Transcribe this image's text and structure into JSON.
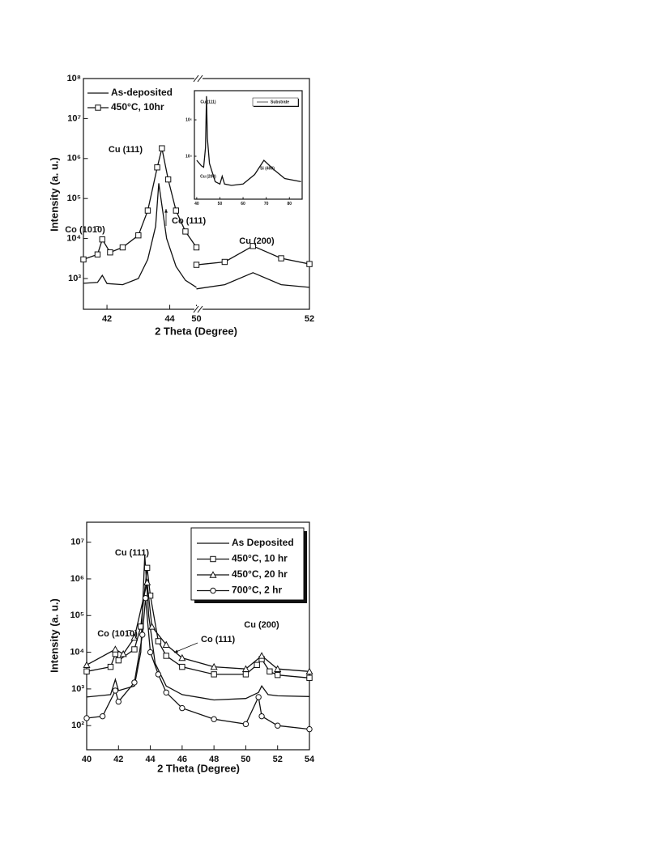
{
  "chart_data": [
    {
      "type": "line",
      "log_scale": "y",
      "legend": "upper left",
      "xlabel": "2 Theta (Degree)",
      "ylabel": "Intensity (a. u.)",
      "xlim_segments": [
        [
          41.25,
          44.85
        ],
        [
          50,
          52
        ]
      ],
      "xticks": [
        42,
        44,
        50,
        52
      ],
      "ylim": [
        170,
        100000000
      ],
      "yticks": [
        {
          "value": 1000,
          "label": "10³"
        },
        {
          "value": 10000,
          "label": "10⁴"
        },
        {
          "value": 100000,
          "label": "10⁵"
        },
        {
          "value": 1000000,
          "label": "10⁶"
        },
        {
          "value": 10000000,
          "label": "10⁷"
        },
        {
          "value": 100000000,
          "label": "10⁸"
        }
      ],
      "annotations": [
        "Cu (111)",
        "Co (101̄0)",
        "Co (111)",
        "Cu (200)"
      ],
      "series": [
        {
          "name": "As-deposited",
          "color": "#111111",
          "marker": "none",
          "x": [
            41.25,
            41.7,
            41.85,
            42.0,
            42.5,
            43.0,
            43.3,
            43.55,
            43.65,
            43.9,
            44.2,
            44.5,
            44.85,
            50,
            50.5,
            51.0,
            51.5,
            52
          ],
          "values": [
            760,
            800,
            1200,
            750,
            700,
            1000,
            3000,
            20000,
            240000,
            10000,
            2000,
            900,
            600,
            550,
            700,
            1400,
            700,
            600
          ]
        },
        {
          "name": "450°C, 10hr",
          "color": "#111111",
          "marker": "square",
          "x": [
            41.25,
            41.7,
            41.85,
            42.1,
            42.5,
            43.0,
            43.3,
            43.6,
            43.75,
            43.95,
            44.2,
            44.5,
            44.85,
            50,
            50.5,
            51.0,
            51.5,
            52
          ],
          "values": [
            3000,
            4000,
            9500,
            4500,
            6000,
            12000,
            50000,
            600000,
            1800000,
            300000,
            50000,
            15000,
            6000,
            2200,
            2600,
            6500,
            3200,
            2300
          ]
        }
      ],
      "inset": {
        "type": "line",
        "log_scale": "y",
        "legend": "upper right",
        "xlim": [
          39,
          85.5
        ],
        "xticks": [
          40,
          50,
          60,
          70,
          80
        ],
        "ylim": [
          44,
          40000000
        ],
        "yticks": [
          {
            "value": 10000,
            "label": "10⁴"
          },
          {
            "value": 1000000,
            "label": "10⁶"
          }
        ],
        "annotations": [
          "Cu (111)",
          "Cu (200)",
          "Si (400)"
        ],
        "series": [
          {
            "name": "Substrate",
            "color": "#111111",
            "marker": "none",
            "x": [
              40,
              42,
              43,
              43.8,
              44.2,
              44.6,
              45.5,
              48,
              50,
              51,
              52,
              55,
              60,
              65,
              69,
              73,
              78,
              85
            ],
            "values": [
              6000,
              3000,
              2500,
              30000,
              20000000,
              100000,
              4000,
              400,
              300,
              800,
              300,
              250,
              300,
              1000,
              6000,
              2000,
              600,
              400
            ]
          }
        ]
      }
    },
    {
      "type": "line",
      "log_scale": "y",
      "legend": "upper right",
      "xlabel": "2 Theta (Degree)",
      "ylabel": "Intensity (a. u.)",
      "xlim": [
        40,
        54
      ],
      "xticks": [
        40,
        42,
        44,
        46,
        48,
        50,
        52,
        54
      ],
      "ylim": [
        22,
        35000000
      ],
      "yticks": [
        {
          "value": 100,
          "label": "10²"
        },
        {
          "value": 1000,
          "label": "10³"
        },
        {
          "value": 10000,
          "label": "10⁴"
        },
        {
          "value": 100000,
          "label": "10⁵"
        },
        {
          "value": 1000000,
          "label": "10⁶"
        },
        {
          "value": 10000000,
          "label": "10⁷"
        }
      ],
      "annotations": [
        "Cu (111)",
        "Co (101̄0)",
        "Co (111)",
        "Cu (200)"
      ],
      "series": [
        {
          "name": "As Deposited",
          "color": "#111111",
          "marker": "none",
          "x": [
            40,
            41.5,
            41.8,
            42,
            43,
            43.4,
            43.65,
            43.9,
            44.3,
            45,
            46,
            48,
            50,
            50.8,
            51,
            51.4,
            52,
            54
          ],
          "values": [
            600,
            700,
            1800,
            900,
            1200,
            10000,
            4500000,
            100000,
            5000,
            1200,
            700,
            500,
            550,
            800,
            1200,
            700,
            650,
            620
          ]
        },
        {
          "name": "450°C, 10 hr",
          "color": "#111111",
          "marker": "square",
          "x": [
            40,
            41.5,
            41.8,
            42,
            43,
            43.4,
            43.8,
            44,
            44.5,
            45,
            46,
            48,
            50,
            50.7,
            51,
            51.5,
            52,
            54
          ],
          "values": [
            3000,
            4000,
            9000,
            6000,
            12000,
            50000,
            2000000,
            350000,
            20000,
            8000,
            4000,
            2500,
            2500,
            4500,
            6500,
            3000,
            2400,
            2000
          ]
        },
        {
          "name": "450°C, 20 hr",
          "color": "#111111",
          "marker": "triangle",
          "x": [
            40,
            41.8,
            42.3,
            43,
            43.8,
            44.1,
            45,
            46,
            48,
            50,
            51,
            52,
            54
          ],
          "values": [
            4500,
            12000,
            9000,
            25000,
            800000,
            50000,
            16000,
            7000,
            4000,
            3500,
            8000,
            3500,
            3000
          ]
        },
        {
          "name": "700°C, 2 hr",
          "color": "#111111",
          "marker": "circle",
          "x": [
            40,
            41,
            41.8,
            42,
            43,
            43.5,
            43.7,
            44,
            44.5,
            45,
            46,
            48,
            50,
            50.8,
            51,
            52,
            54
          ],
          "values": [
            160,
            180,
            900,
            450,
            1500,
            30000,
            300000,
            10000,
            2500,
            800,
            300,
            150,
            110,
            600,
            180,
            100,
            80
          ]
        }
      ]
    }
  ]
}
